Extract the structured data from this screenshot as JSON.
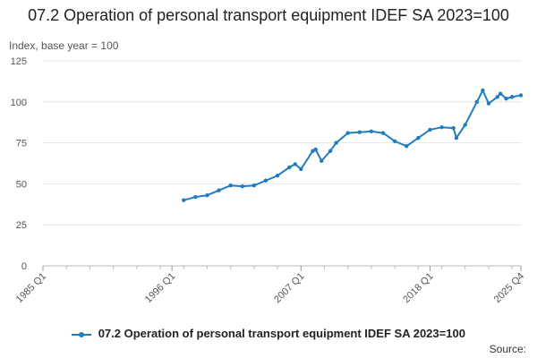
{
  "chart_data": {
    "type": "line",
    "title": "07.2 Operation of personal transport equipment IDEF SA 2023=100",
    "ylabel": "Index, base year = 100",
    "xlabel": "",
    "ylim": [
      0,
      125
    ],
    "yticks": [
      0,
      25,
      50,
      75,
      100,
      125
    ],
    "xticks": [
      "1985 Q1",
      "1996 Q1",
      "2007 Q1",
      "2018 Q1",
      "2025 Q4"
    ],
    "grid": true,
    "legend_position": "bottom",
    "series": [
      {
        "name": "07.2 Operation of personal transport equipment IDEF SA 2023=100",
        "color": "#1f7dbf",
        "points": [
          [
            "1997 Q1",
            40
          ],
          [
            "1998 Q1",
            42
          ],
          [
            "1999 Q1",
            43
          ],
          [
            "2000 Q1",
            46
          ],
          [
            "2001 Q1",
            49
          ],
          [
            "2002 Q1",
            48.5
          ],
          [
            "2003 Q1",
            49
          ],
          [
            "2004 Q1",
            52
          ],
          [
            "2005 Q1",
            55
          ],
          [
            "2006 Q1",
            60
          ],
          [
            "2006 Q3",
            62
          ],
          [
            "2007 Q1",
            59
          ],
          [
            "2008 Q1",
            70
          ],
          [
            "2008 Q2",
            71
          ],
          [
            "2008 Q4",
            64
          ],
          [
            "2009 Q3",
            70
          ],
          [
            "2010 Q1",
            75
          ],
          [
            "2011 Q1",
            81
          ],
          [
            "2012 Q1",
            81.5
          ],
          [
            "2013 Q1",
            82
          ],
          [
            "2014 Q1",
            81
          ],
          [
            "2015 Q1",
            76
          ],
          [
            "2016 Q1",
            73
          ],
          [
            "2017 Q1",
            78
          ],
          [
            "2018 Q1",
            83
          ],
          [
            "2019 Q1",
            84.5
          ],
          [
            "2020 Q1",
            84
          ],
          [
            "2020 Q2",
            78
          ],
          [
            "2021 Q1",
            86
          ],
          [
            "2022 Q1",
            100
          ],
          [
            "2022 Q3",
            107
          ],
          [
            "2023 Q1",
            99
          ],
          [
            "2023 Q4",
            103
          ],
          [
            "2024 Q1",
            105
          ],
          [
            "2024 Q3",
            102
          ],
          [
            "2025 Q1",
            103
          ],
          [
            "2025 Q4",
            104
          ]
        ]
      }
    ]
  },
  "source_label": "Source:"
}
